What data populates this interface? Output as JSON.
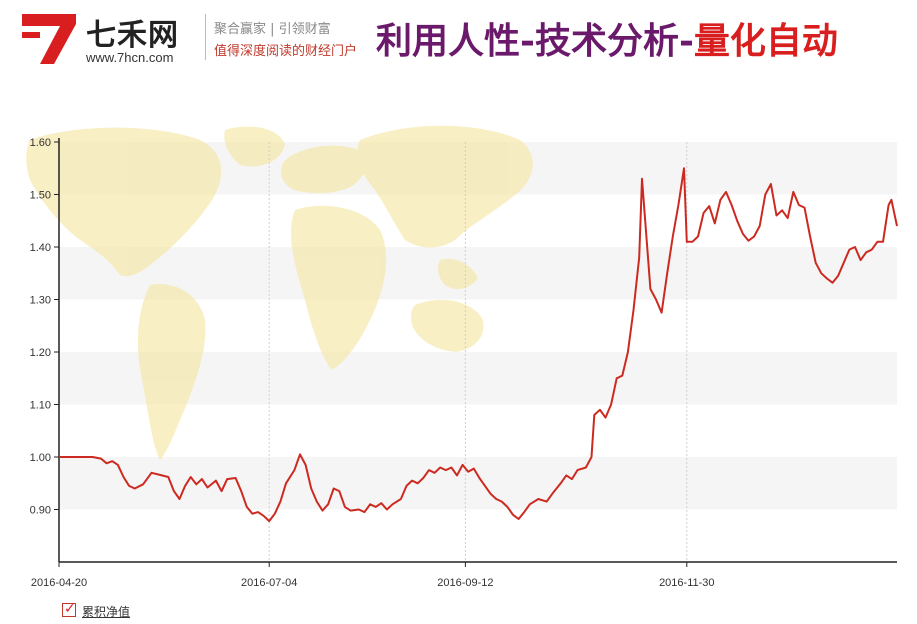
{
  "header": {
    "logo_name": "七禾网",
    "logo_url": "www.7hcn.com",
    "slogan_line1": "聚合赢家 | 引领财富",
    "slogan_line2": "值得深度阅读的财经门户",
    "headline_part1": "利用人性-技术分析-",
    "headline_part2": "量化自动",
    "colors": {
      "headline_part1": "#6b1a6b",
      "headline_part2": "#d81e1e",
      "logo_red": "#d81e1e"
    }
  },
  "chart_data": {
    "type": "line",
    "title": "",
    "xlabel": "",
    "ylabel": "",
    "ylim": [
      0.8,
      1.6
    ],
    "yticks": [
      0.9,
      1.0,
      1.1,
      1.2,
      1.3,
      1.4,
      1.5,
      1.6
    ],
    "ytick_labels": [
      "0.90",
      "1.00",
      "1.10",
      "1.20",
      "1.30",
      "1.40",
      "1.50",
      "1.60"
    ],
    "xlim": [
      "2016-04-20",
      "2017-02-13"
    ],
    "xticks": [
      "2016-04-20",
      "2016-07-04",
      "2016-09-12",
      "2016-11-30"
    ],
    "grid": "alternating horizontal bands",
    "legend_position": "bottom-left",
    "series": [
      {
        "name": "累积净值",
        "color": "#cc2a20",
        "points": [
          [
            "2016-04-20",
            1.0
          ],
          [
            "2016-05-02",
            1.0
          ],
          [
            "2016-05-05",
            0.997
          ],
          [
            "2016-05-07",
            0.988
          ],
          [
            "2016-05-09",
            0.992
          ],
          [
            "2016-05-11",
            0.985
          ],
          [
            "2016-05-13",
            0.962
          ],
          [
            "2016-05-15",
            0.945
          ],
          [
            "2016-05-17",
            0.94
          ],
          [
            "2016-05-20",
            0.948
          ],
          [
            "2016-05-23",
            0.97
          ],
          [
            "2016-05-26",
            0.966
          ],
          [
            "2016-05-29",
            0.962
          ],
          [
            "2016-05-31",
            0.935
          ],
          [
            "2016-06-02",
            0.92
          ],
          [
            "2016-06-04",
            0.945
          ],
          [
            "2016-06-06",
            0.962
          ],
          [
            "2016-06-08",
            0.948
          ],
          [
            "2016-06-10",
            0.958
          ],
          [
            "2016-06-12",
            0.942
          ],
          [
            "2016-06-15",
            0.955
          ],
          [
            "2016-06-17",
            0.935
          ],
          [
            "2016-06-19",
            0.958
          ],
          [
            "2016-06-22",
            0.96
          ],
          [
            "2016-06-24",
            0.935
          ],
          [
            "2016-06-26",
            0.905
          ],
          [
            "2016-06-28",
            0.892
          ],
          [
            "2016-06-30",
            0.895
          ],
          [
            "2016-07-02",
            0.888
          ],
          [
            "2016-07-04",
            0.878
          ],
          [
            "2016-07-06",
            0.892
          ],
          [
            "2016-07-08",
            0.915
          ],
          [
            "2016-07-10",
            0.95
          ],
          [
            "2016-07-13",
            0.975
          ],
          [
            "2016-07-15",
            1.005
          ],
          [
            "2016-07-17",
            0.985
          ],
          [
            "2016-07-19",
            0.94
          ],
          [
            "2016-07-21",
            0.915
          ],
          [
            "2016-07-23",
            0.898
          ],
          [
            "2016-07-25",
            0.91
          ],
          [
            "2016-07-27",
            0.94
          ],
          [
            "2016-07-29",
            0.935
          ],
          [
            "2016-07-31",
            0.905
          ],
          [
            "2016-08-02",
            0.898
          ],
          [
            "2016-08-05",
            0.9
          ],
          [
            "2016-08-07",
            0.895
          ],
          [
            "2016-08-09",
            0.91
          ],
          [
            "2016-08-11",
            0.905
          ],
          [
            "2016-08-13",
            0.912
          ],
          [
            "2016-08-15",
            0.9
          ],
          [
            "2016-08-17",
            0.91
          ],
          [
            "2016-08-20",
            0.92
          ],
          [
            "2016-08-22",
            0.945
          ],
          [
            "2016-08-24",
            0.955
          ],
          [
            "2016-08-26",
            0.95
          ],
          [
            "2016-08-28",
            0.96
          ],
          [
            "2016-08-30",
            0.975
          ],
          [
            "2016-09-01",
            0.97
          ],
          [
            "2016-09-03",
            0.98
          ],
          [
            "2016-09-05",
            0.975
          ],
          [
            "2016-09-07",
            0.98
          ],
          [
            "2016-09-09",
            0.965
          ],
          [
            "2016-09-11",
            0.985
          ],
          [
            "2016-09-13",
            0.972
          ],
          [
            "2016-09-15",
            0.978
          ],
          [
            "2016-09-17",
            0.96
          ],
          [
            "2016-09-19",
            0.945
          ],
          [
            "2016-09-21",
            0.93
          ],
          [
            "2016-09-23",
            0.92
          ],
          [
            "2016-09-25",
            0.915
          ],
          [
            "2016-09-27",
            0.905
          ],
          [
            "2016-09-29",
            0.89
          ],
          [
            "2016-10-01",
            0.882
          ],
          [
            "2016-10-03",
            0.895
          ],
          [
            "2016-10-05",
            0.91
          ],
          [
            "2016-10-08",
            0.92
          ],
          [
            "2016-10-11",
            0.915
          ],
          [
            "2016-10-13",
            0.93
          ],
          [
            "2016-10-16",
            0.95
          ],
          [
            "2016-10-18",
            0.965
          ],
          [
            "2016-10-20",
            0.958
          ],
          [
            "2016-10-22",
            0.975
          ],
          [
            "2016-10-25",
            0.98
          ],
          [
            "2016-10-27",
            1.0
          ],
          [
            "2016-10-28",
            1.08
          ],
          [
            "2016-10-30",
            1.09
          ],
          [
            "2016-11-01",
            1.075
          ],
          [
            "2016-11-03",
            1.1
          ],
          [
            "2016-11-05",
            1.15
          ],
          [
            "2016-11-07",
            1.155
          ],
          [
            "2016-11-09",
            1.2
          ],
          [
            "2016-11-11",
            1.28
          ],
          [
            "2016-11-13",
            1.38
          ],
          [
            "2016-11-14",
            1.53
          ],
          [
            "2016-11-15",
            1.46
          ],
          [
            "2016-11-17",
            1.32
          ],
          [
            "2016-11-19",
            1.3
          ],
          [
            "2016-11-21",
            1.275
          ],
          [
            "2016-11-23",
            1.35
          ],
          [
            "2016-11-25",
            1.42
          ],
          [
            "2016-11-27",
            1.48
          ],
          [
            "2016-11-29",
            1.55
          ],
          [
            "2016-11-30",
            1.41
          ],
          [
            "2016-12-02",
            1.41
          ],
          [
            "2016-12-04",
            1.42
          ],
          [
            "2016-12-06",
            1.465
          ],
          [
            "2016-12-08",
            1.478
          ],
          [
            "2016-12-10",
            1.445
          ],
          [
            "2016-12-12",
            1.49
          ],
          [
            "2016-12-14",
            1.505
          ],
          [
            "2016-12-16",
            1.48
          ],
          [
            "2016-12-18",
            1.45
          ],
          [
            "2016-12-20",
            1.425
          ],
          [
            "2016-12-22",
            1.412
          ],
          [
            "2016-12-24",
            1.42
          ],
          [
            "2016-12-26",
            1.44
          ],
          [
            "2016-12-28",
            1.5
          ],
          [
            "2016-12-30",
            1.52
          ],
          [
            "2017-01-01",
            1.46
          ],
          [
            "2017-01-03",
            1.47
          ],
          [
            "2017-01-05",
            1.455
          ],
          [
            "2017-01-07",
            1.505
          ],
          [
            "2017-01-09",
            1.48
          ],
          [
            "2017-01-11",
            1.475
          ],
          [
            "2017-01-13",
            1.42
          ],
          [
            "2017-01-15",
            1.37
          ],
          [
            "2017-01-17",
            1.35
          ],
          [
            "2017-01-19",
            1.34
          ],
          [
            "2017-01-21",
            1.332
          ],
          [
            "2017-01-23",
            1.345
          ],
          [
            "2017-01-25",
            1.37
          ],
          [
            "2017-01-27",
            1.395
          ],
          [
            "2017-01-29",
            1.4
          ],
          [
            "2017-01-31",
            1.375
          ],
          [
            "2017-02-02",
            1.39
          ],
          [
            "2017-02-04",
            1.395
          ],
          [
            "2017-02-06",
            1.41
          ],
          [
            "2017-02-08",
            1.41
          ],
          [
            "2017-02-10",
            1.48
          ],
          [
            "2017-02-11",
            1.49
          ],
          [
            "2017-02-13",
            1.44
          ]
        ]
      }
    ]
  }
}
